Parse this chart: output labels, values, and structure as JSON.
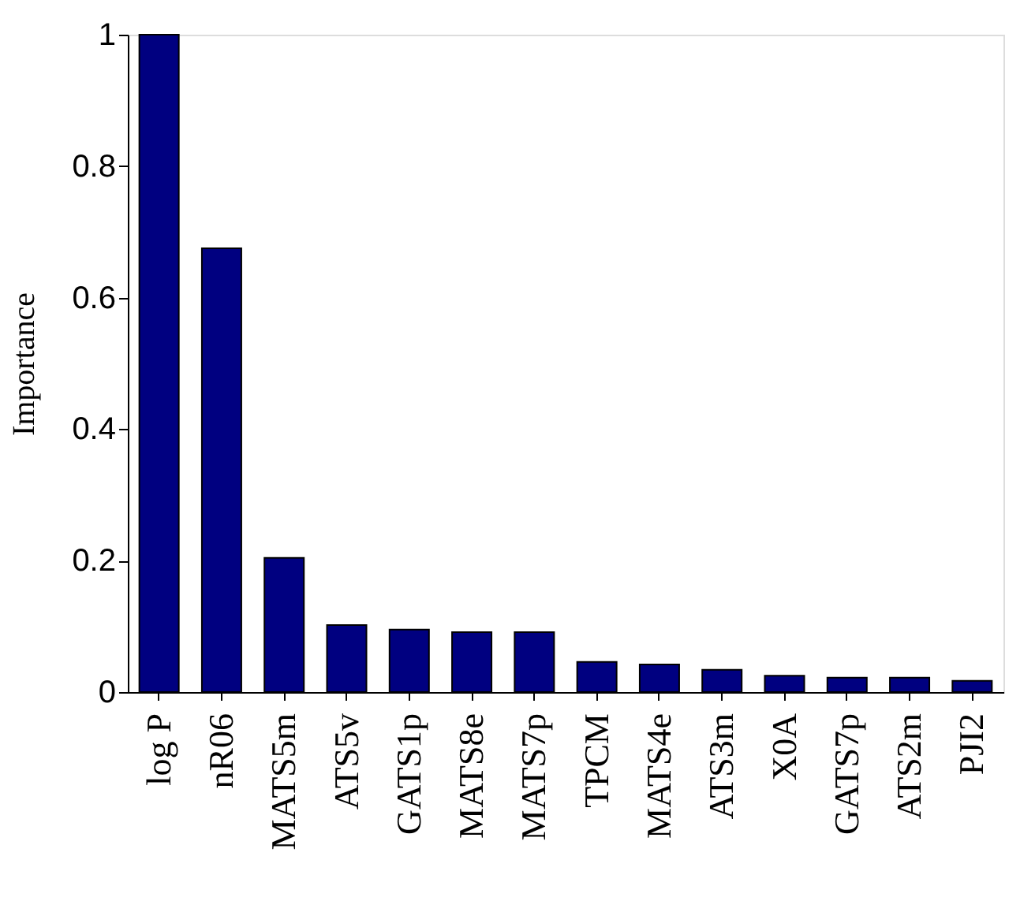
{
  "chart_data": {
    "type": "bar",
    "ylabel": "Importance",
    "categories": [
      "log P",
      "nR06",
      "MATS5m",
      "ATS5v",
      "GATS1p",
      "MATS8e",
      "MATS7p",
      "TPCM",
      "MATS4e",
      "ATS3m",
      "X0A",
      "GATS7p",
      "ATS2m",
      "PJI2"
    ],
    "values": [
      1.0,
      0.675,
      0.204,
      0.102,
      0.095,
      0.091,
      0.091,
      0.046,
      0.042,
      0.034,
      0.025,
      0.022,
      0.022,
      0.017
    ],
    "color": "#000080",
    "ylim": [
      0,
      1
    ],
    "yticks": [
      0,
      0.2,
      0.4,
      0.6,
      0.8,
      1
    ],
    "grid": false
  }
}
